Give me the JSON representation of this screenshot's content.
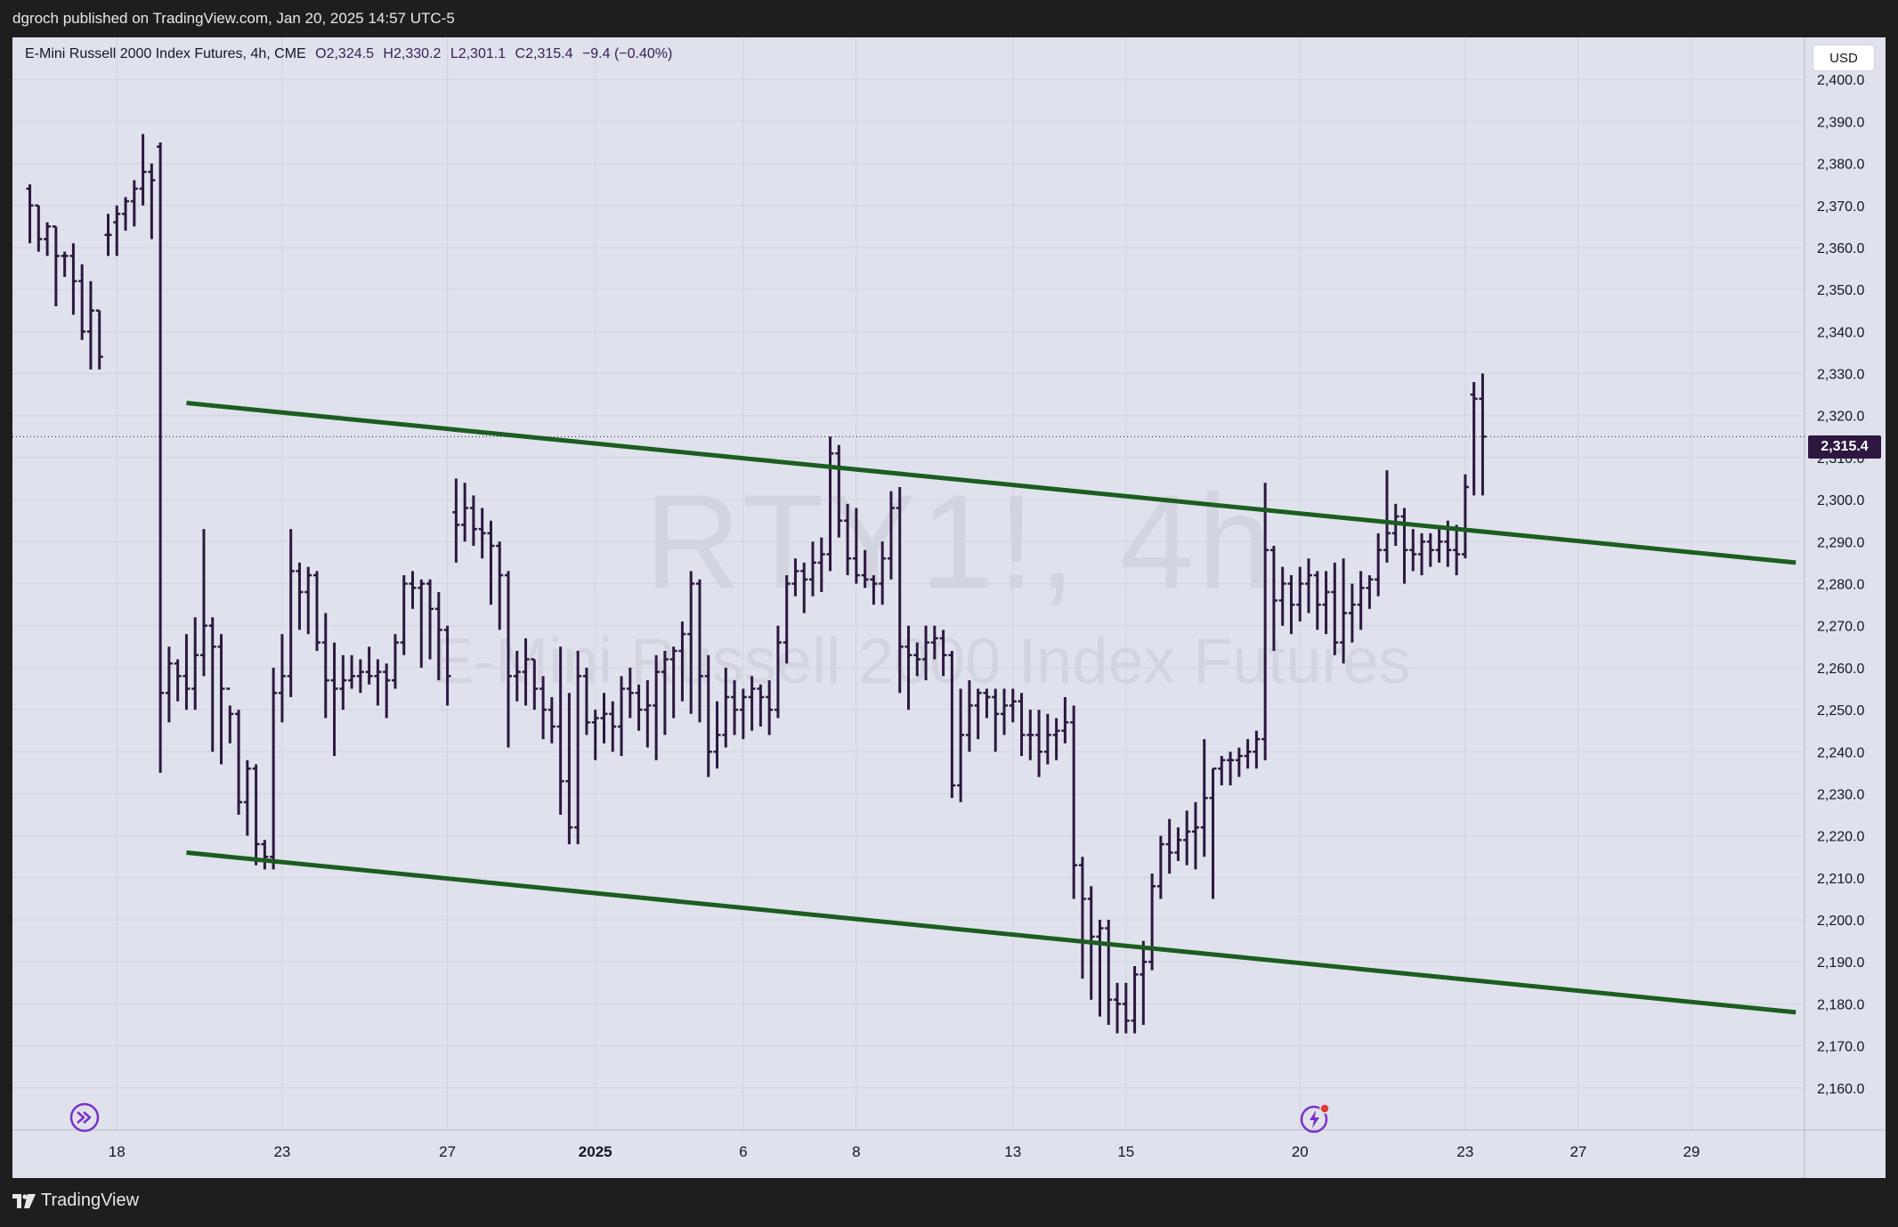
{
  "header": {
    "published_line": "dgroch published on TradingView.com, Jan 20, 2025 14:57 UTC-5"
  },
  "legend": {
    "instrument": "E-Mini Russell 2000 Index Futures, 4h, CME",
    "open": "O2,324.5",
    "high": "H2,330.2",
    "low": "L2,301.1",
    "close": "C2,315.4",
    "change": "−9.4 (−0.40%)"
  },
  "watermark": {
    "symbol": "RTY1!, 4h",
    "name": "E-Mini Russell 2000 Index Futures"
  },
  "currency": "USD",
  "last_price_label": "2,315.4",
  "footer": {
    "brand": "TradingView"
  },
  "icons": {
    "replay": "fast-forward-circle-icon",
    "alert": "lightning-alert-icon",
    "logo": "tradingview-logo-icon"
  },
  "colors": {
    "candles": "#2d1740",
    "trendlines": "#1b5e20",
    "background": "#dfe2ec",
    "last_price_tag": "#2d1740"
  },
  "chart_data": {
    "type": "ohlc",
    "interval": "4h",
    "ylim": [
      2150,
      2410
    ],
    "y_ticks": [
      "2,160.0",
      "2,170.0",
      "2,180.0",
      "2,190.0",
      "2,200.0",
      "2,210.0",
      "2,220.0",
      "2,230.0",
      "2,240.0",
      "2,250.0",
      "2,260.0",
      "2,270.0",
      "2,280.0",
      "2,290.0",
      "2,300.0",
      "2,310.0",
      "2,320.0",
      "2,330.0",
      "2,340.0",
      "2,350.0",
      "2,360.0",
      "2,370.0",
      "2,380.0",
      "2,390.0",
      "2,400.0"
    ],
    "y_tick_values": [
      2160,
      2170,
      2180,
      2190,
      2200,
      2210,
      2220,
      2230,
      2240,
      2250,
      2260,
      2270,
      2280,
      2290,
      2300,
      2310,
      2320,
      2330,
      2340,
      2350,
      2360,
      2370,
      2380,
      2390,
      2400
    ],
    "x_range_bars": [
      -2,
      204
    ],
    "x_ticks": [
      {
        "label": "18",
        "bar": 10,
        "bold": false
      },
      {
        "label": "23",
        "bar": 29,
        "bold": false
      },
      {
        "label": "27",
        "bar": 48,
        "bold": false
      },
      {
        "label": "2025",
        "bar": 65,
        "bold": true
      },
      {
        "label": "6",
        "bar": 82,
        "bold": false
      },
      {
        "label": "8",
        "bar": 95,
        "bold": false
      },
      {
        "label": "13",
        "bar": 113,
        "bold": false
      },
      {
        "label": "15",
        "bar": 126,
        "bold": false
      },
      {
        "label": "20",
        "bar": 146,
        "bold": false
      },
      {
        "label": "23",
        "bar": 165,
        "bold": false
      },
      {
        "label": "27",
        "bar": 178,
        "bold": false
      },
      {
        "label": "29",
        "bar": 191,
        "bold": false
      }
    ],
    "bars": [
      [
        2374,
        2375,
        2361,
        2370
      ],
      [
        2370,
        2370,
        2359,
        2362
      ],
      [
        2362,
        2366,
        2358,
        2365
      ],
      [
        2365,
        2365,
        2346,
        2358
      ],
      [
        2358,
        2359,
        2353,
        2358
      ],
      [
        2358,
        2361,
        2344,
        2352
      ],
      [
        2352,
        2356,
        2338,
        2340
      ],
      [
        2340,
        2352,
        2331,
        2345
      ],
      [
        2345,
        2345,
        2331,
        2334
      ],
      [
        2363,
        2368,
        2358,
        2363
      ],
      [
        2366,
        2370,
        2358,
        2368
      ],
      [
        2368,
        2372,
        2364,
        2371
      ],
      [
        2371,
        2376,
        2365,
        2374
      ],
      [
        2374,
        2387,
        2370,
        2378
      ],
      [
        2378,
        2380,
        2362,
        2376
      ],
      [
        2384,
        2385,
        2235,
        2254
      ],
      [
        2254,
        2265,
        2247,
        2261
      ],
      [
        2261,
        2262,
        2252,
        2258
      ],
      [
        2258,
        2268,
        2250,
        2255
      ],
      [
        2255,
        2272,
        2250,
        2263
      ],
      [
        2263,
        2293,
        2258,
        2270
      ],
      [
        2270,
        2272,
        2240,
        2265
      ],
      [
        2265,
        2268,
        2237,
        2255
      ],
      [
        2255,
        2251,
        2242,
        2249
      ],
      [
        2249,
        2250,
        2225,
        2228
      ],
      [
        2228,
        2238,
        2220,
        2236
      ],
      [
        2236,
        2237,
        2213,
        2218
      ],
      [
        2218,
        2219,
        2212,
        2215
      ],
      [
        2215,
        2260,
        2212,
        2254
      ],
      [
        2254,
        2268,
        2247,
        2258
      ],
      [
        2258,
        2293,
        2253,
        2283
      ],
      [
        2283,
        2285,
        2269,
        2278
      ],
      [
        2278,
        2284,
        2268,
        2282
      ],
      [
        2282,
        2283,
        2264,
        2266
      ],
      [
        2266,
        2273,
        2248,
        2257
      ],
      [
        2257,
        2266,
        2239,
        2255
      ],
      [
        2255,
        2263,
        2250,
        2257
      ],
      [
        2257,
        2263,
        2255,
        2258
      ],
      [
        2258,
        2262,
        2254,
        2259
      ],
      [
        2259,
        2265,
        2256,
        2258
      ],
      [
        2258,
        2262,
        2251,
        2259
      ],
      [
        2259,
        2261,
        2248,
        2257
      ],
      [
        2257,
        2268,
        2255,
        2266
      ],
      [
        2266,
        2282,
        2263,
        2280
      ],
      [
        2280,
        2283,
        2274,
        2279
      ],
      [
        2279,
        2281,
        2260,
        2280
      ],
      [
        2280,
        2281,
        2262,
        2274
      ],
      [
        2274,
        2278,
        2257,
        2269
      ],
      [
        2269,
        2270,
        2251,
        2258
      ],
      [
        2297,
        2305,
        2285,
        2294
      ],
      [
        2294,
        2304,
        2290,
        2298
      ],
      [
        2298,
        2301,
        2289,
        2293
      ],
      [
        2293,
        2298,
        2286,
        2292
      ],
      [
        2292,
        2295,
        2275,
        2289
      ],
      [
        2289,
        2290,
        2269,
        2282
      ],
      [
        2282,
        2283,
        2241,
        2258
      ],
      [
        2258,
        2264,
        2252,
        2259
      ],
      [
        2259,
        2267,
        2251,
        2262
      ],
      [
        2262,
        2262,
        2250,
        2255
      ],
      [
        2255,
        2258,
        2243,
        2250
      ],
      [
        2250,
        2253,
        2242,
        2246
      ],
      [
        2246,
        2265,
        2225,
        2233
      ],
      [
        2233,
        2254,
        2218,
        2222
      ],
      [
        2222,
        2264,
        2218,
        2258
      ],
      [
        2258,
        2260,
        2244,
        2247
      ],
      [
        2247,
        2250,
        2238,
        2248
      ],
      [
        2248,
        2254,
        2242,
        2249
      ],
      [
        2249,
        2252,
        2240,
        2246
      ],
      [
        2246,
        2258,
        2239,
        2255
      ],
      [
        2255,
        2260,
        2248,
        2254
      ],
      [
        2254,
        2256,
        2245,
        2250
      ],
      [
        2250,
        2257,
        2241,
        2251
      ],
      [
        2251,
        2263,
        2238,
        2259
      ],
      [
        2259,
        2264,
        2244,
        2262
      ],
      [
        2262,
        2265,
        2248,
        2264
      ],
      [
        2264,
        2271,
        2252,
        2268
      ],
      [
        2268,
        2283,
        2249,
        2280
      ],
      [
        2280,
        2281,
        2247,
        2258
      ],
      [
        2258,
        2263,
        2234,
        2240
      ],
      [
        2240,
        2252,
        2236,
        2244
      ],
      [
        2244,
        2260,
        2241,
        2253
      ],
      [
        2253,
        2257,
        2244,
        2250
      ],
      [
        2250,
        2255,
        2243,
        2253
      ],
      [
        2253,
        2258,
        2245,
        2255
      ],
      [
        2255,
        2256,
        2246,
        2253
      ],
      [
        2253,
        2257,
        2244,
        2250
      ],
      [
        2250,
        2270,
        2248,
        2266
      ],
      [
        2266,
        2282,
        2261,
        2280
      ],
      [
        2280,
        2286,
        2277,
        2283
      ],
      [
        2283,
        2285,
        2273,
        2281
      ],
      [
        2281,
        2290,
        2277,
        2285
      ],
      [
        2285,
        2291,
        2278,
        2287
      ],
      [
        2287,
        2315,
        2283,
        2311
      ],
      [
        2311,
        2313,
        2291,
        2295
      ],
      [
        2295,
        2299,
        2282,
        2286
      ],
      [
        2286,
        2298,
        2280,
        2282
      ],
      [
        2282,
        2288,
        2279,
        2281
      ],
      [
        2281,
        2282,
        2275,
        2280
      ],
      [
        2280,
        2290,
        2275,
        2286
      ],
      [
        2286,
        2302,
        2281,
        2298
      ],
      [
        2298,
        2303,
        2254,
        2265
      ],
      [
        2265,
        2270,
        2250,
        2263
      ],
      [
        2263,
        2266,
        2258,
        2262
      ],
      [
        2262,
        2270,
        2257,
        2266
      ],
      [
        2266,
        2270,
        2262,
        2267
      ],
      [
        2267,
        2269,
        2258,
        2263
      ],
      [
        2263,
        2264,
        2229,
        2232
      ],
      [
        2232,
        2255,
        2228,
        2244
      ],
      [
        2244,
        2257,
        2240,
        2251
      ],
      [
        2251,
        2255,
        2243,
        2254
      ],
      [
        2254,
        2255,
        2248,
        2253
      ],
      [
        2253,
        2255,
        2240,
        2249
      ],
      [
        2249,
        2255,
        2244,
        2251
      ],
      [
        2251,
        2255,
        2247,
        2252
      ],
      [
        2252,
        2254,
        2239,
        2244
      ],
      [
        2244,
        2250,
        2238,
        2244
      ],
      [
        2244,
        2250,
        2234,
        2240
      ],
      [
        2240,
        2249,
        2237,
        2244
      ],
      [
        2244,
        2248,
        2238,
        2245
      ],
      [
        2245,
        2253,
        2242,
        2247
      ],
      [
        2247,
        2251,
        2205,
        2213
      ],
      [
        2213,
        2215,
        2186,
        2205
      ],
      [
        2205,
        2208,
        2181,
        2196
      ],
      [
        2196,
        2200,
        2177,
        2198
      ],
      [
        2198,
        2200,
        2175,
        2181
      ],
      [
        2181,
        2185,
        2173,
        2180
      ],
      [
        2180,
        2185,
        2173,
        2176
      ],
      [
        2176,
        2189,
        2173,
        2187
      ],
      [
        2187,
        2195,
        2175,
        2190
      ],
      [
        2190,
        2211,
        2188,
        2208
      ],
      [
        2208,
        2220,
        2205,
        2218
      ],
      [
        2218,
        2224,
        2211,
        2216
      ],
      [
        2216,
        2222,
        2214,
        2219
      ],
      [
        2219,
        2226,
        2213,
        2221
      ],
      [
        2221,
        2228,
        2212,
        2222
      ],
      [
        2222,
        2243,
        2215,
        2229
      ],
      [
        2229,
        2236,
        2205,
        2236
      ],
      [
        2236,
        2239,
        2232,
        2238
      ],
      [
        2238,
        2240,
        2232,
        2238
      ],
      [
        2238,
        2241,
        2234,
        2239
      ],
      [
        2239,
        2243,
        2236,
        2240
      ],
      [
        2240,
        2245,
        2236,
        2243
      ],
      [
        2243,
        2304,
        2238,
        2288
      ],
      [
        2288,
        2289,
        2264,
        2276
      ],
      [
        2276,
        2284,
        2270,
        2280
      ],
      [
        2280,
        2282,
        2268,
        2275
      ],
      [
        2275,
        2284,
        2271,
        2280
      ],
      [
        2280,
        2286,
        2273,
        2282
      ],
      [
        2282,
        2283,
        2269,
        2275
      ],
      [
        2275,
        2283,
        2268,
        2278
      ],
      [
        2278,
        2285,
        2263,
        2266
      ],
      [
        2266,
        2286,
        2261,
        2273
      ],
      [
        2273,
        2280,
        2266,
        2275
      ],
      [
        2275,
        2283,
        2269,
        2279
      ],
      [
        2279,
        2282,
        2274,
        2281
      ],
      [
        2281,
        2292,
        2277,
        2288
      ],
      [
        2288,
        2307,
        2285,
        2292
      ],
      [
        2292,
        2299,
        2289,
        2296
      ],
      [
        2296,
        2298,
        2280,
        2288
      ],
      [
        2288,
        2293,
        2283,
        2287
      ],
      [
        2287,
        2292,
        2282,
        2290
      ],
      [
        2290,
        2292,
        2284,
        2288
      ],
      [
        2288,
        2293,
        2285,
        2290
      ],
      [
        2290,
        2295,
        2284,
        2288
      ],
      [
        2288,
        2294,
        2282,
        2287
      ],
      [
        2287,
        2306,
        2286,
        2303
      ],
      [
        2325,
        2328,
        2301,
        2324
      ],
      [
        2324,
        2330,
        2301,
        2315
      ]
    ],
    "trendlines": [
      {
        "name": "upper-channel",
        "points": [
          [
            18,
            2323
          ],
          [
            203,
            2285
          ]
        ]
      },
      {
        "name": "lower-channel",
        "points": [
          [
            18,
            2216
          ],
          [
            203,
            2178
          ]
        ]
      }
    ]
  }
}
